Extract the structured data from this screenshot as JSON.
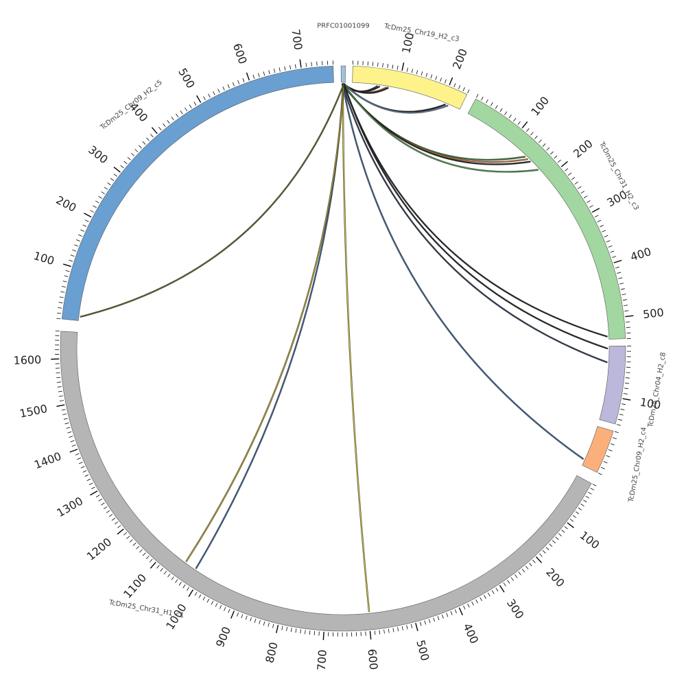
{
  "chart_data": {
    "type": "chord",
    "title": "",
    "segments": [
      {
        "name": "PRFC01001099",
        "length": 10,
        "color": "#9ec3de",
        "labels": []
      },
      {
        "name": "TcDm25_Chr19_H2_c3",
        "length": 240,
        "color": "#fdf38a",
        "labels": [
          "100",
          "200"
        ]
      },
      {
        "name": "TcDm25_Chr31_H2_c3",
        "length": 540,
        "color": "#a3d7a1",
        "labels": [
          "100",
          "200",
          "300",
          "400",
          "500"
        ]
      },
      {
        "name": "TcDm25_Chr04_H2_c8",
        "length": 150,
        "color": "#bcb8db",
        "labels": [
          "100"
        ]
      },
      {
        "name": "TcDm25_Chr09_H2_c4",
        "length": 70,
        "color": "#fbb07c",
        "labels": []
      },
      {
        "name": "TcDm25_Chr31_H1_c1",
        "length": 1660,
        "color": "#b5b5b5",
        "labels": [
          "100",
          "200",
          "300",
          "400",
          "500",
          "600",
          "700",
          "800",
          "900",
          "1000",
          "1100",
          "1200",
          "1300",
          "1400",
          "1500",
          "1600"
        ]
      },
      {
        "name": "TcDm25_Chr09_H2_c5",
        "length": 760,
        "color": "#6a9fd1",
        "labels": [
          "100",
          "200",
          "300",
          "400",
          "500",
          "600",
          "700"
        ]
      }
    ],
    "links": [
      {
        "source": "PRFC01001099",
        "target": "TcDm25_Chr19_H2_c3",
        "target_pos": 55,
        "color": "#2b3e5c"
      },
      {
        "source": "PRFC01001099",
        "target": "TcDm25_Chr19_H2_c3",
        "target_pos": 60,
        "color": "#222222"
      },
      {
        "source": "PRFC01001099",
        "target": "TcDm25_Chr19_H2_c3",
        "target_pos": 75,
        "color": "#e8803a"
      },
      {
        "source": "PRFC01001099",
        "target": "TcDm25_Chr19_H2_c3",
        "target_pos": 79,
        "color": "#222222"
      },
      {
        "source": "PRFC01001099",
        "target": "TcDm25_Chr19_H2_c3",
        "target_pos": 208,
        "color": "#222222"
      },
      {
        "source": "PRFC01001099",
        "target": "TcDm25_Chr19_H2_c3",
        "target_pos": 214,
        "color": "#6b8fb8"
      },
      {
        "source": "PRFC01001099",
        "target": "TcDm25_Chr31_H2_c3",
        "target_pos": 140,
        "color": "#3a8c3a"
      },
      {
        "source": "PRFC01001099",
        "target": "TcDm25_Chr31_H2_c3",
        "target_pos": 147,
        "color": "#e8803a"
      },
      {
        "source": "PRFC01001099",
        "target": "TcDm25_Chr31_H2_c3",
        "target_pos": 154,
        "color": "#222222"
      },
      {
        "source": "PRFC01001099",
        "target": "TcDm25_Chr31_H2_c3",
        "target_pos": 176,
        "color": "#55aa55"
      },
      {
        "source": "PRFC01001099",
        "target": "TcDm25_Chr31_H2_c3",
        "target_pos": 535,
        "color": "#222222"
      },
      {
        "source": "PRFC01001099",
        "target": "TcDm25_Chr04_H2_c8",
        "target_pos": 5,
        "color": "#222222"
      },
      {
        "source": "PRFC01001099",
        "target": "TcDm25_Chr04_H2_c8",
        "target_pos": 33,
        "color": "#2b3e5c"
      },
      {
        "source": "PRFC01001099",
        "target": "TcDm25_Chr09_H2_c4",
        "target_pos": 60,
        "color": "#3d6fa8"
      },
      {
        "source": "PRFC01001099",
        "target": "TcDm25_Chr31_H1_c1",
        "target_pos": 598,
        "color": "#e5dc40"
      },
      {
        "source": "PRFC01001099",
        "target": "TcDm25_Chr31_H1_c1",
        "target_pos": 1020,
        "color": "#3d6fa8"
      },
      {
        "source": "PRFC01001099",
        "target": "TcDm25_Chr31_H1_c1",
        "target_pos": 1048,
        "color": "#c9b32a"
      },
      {
        "source": "PRFC01001099",
        "target": "TcDm25_Chr09_H2_c5",
        "target_pos": 8,
        "color": "#6b6b2a"
      }
    ],
    "grid": false,
    "legend": "none"
  }
}
